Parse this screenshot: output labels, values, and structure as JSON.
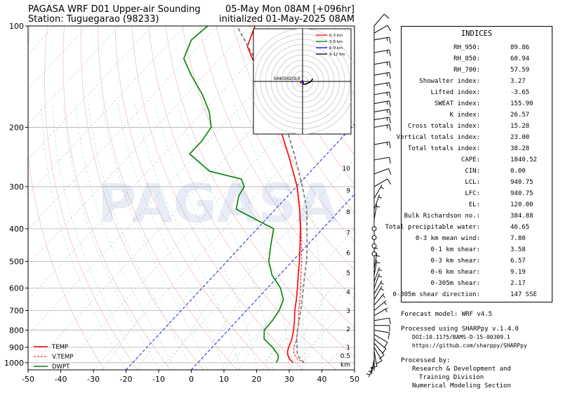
{
  "header": {
    "title_left": "PAGASA WRF D01 Upper-air Sounding",
    "station": "Station: Tuguegarao (98233)",
    "valid": "05-May Mon 08AM [+096hr]",
    "initialized": "initialized 01-May-2025 08AM"
  },
  "watermark": "PAGASA",
  "chart_data": {
    "type": "line",
    "subtype": "skew-T log-P diagram",
    "x_axis": {
      "label": "",
      "range": [
        -50,
        50
      ],
      "ticks": [
        -50,
        -40,
        -30,
        -20,
        -10,
        0,
        10,
        20,
        30,
        40,
        50
      ]
    },
    "y_axis": {
      "label": "",
      "scale": "log",
      "range": [
        1050,
        100
      ],
      "ticks": [
        1000,
        900,
        800,
        700,
        600,
        500,
        400,
        300,
        200,
        100
      ]
    },
    "height_km_labels": [
      {
        "label": "km",
        "p": 1013
      },
      {
        "label": "0.5",
        "p": 955
      },
      {
        "label": "1",
        "p": 900
      },
      {
        "label": "2",
        "p": 795
      },
      {
        "label": "3",
        "p": 702
      },
      {
        "label": "4",
        "p": 616
      },
      {
        "label": "5",
        "p": 541
      },
      {
        "label": "6",
        "p": 472
      },
      {
        "label": "7",
        "p": 411
      },
      {
        "label": "8",
        "p": 357
      },
      {
        "label": "9",
        "p": 308
      },
      {
        "label": "10",
        "p": 265
      }
    ],
    "series": [
      {
        "name": "TEMP",
        "color": "#ff0000",
        "style": "solid",
        "points": [
          [
            1000,
            29.2
          ],
          [
            975,
            27.0
          ],
          [
            950,
            25.4
          ],
          [
            925,
            24.2
          ],
          [
            900,
            23.4
          ],
          [
            850,
            22.0
          ],
          [
            800,
            20.0
          ],
          [
            750,
            17.6
          ],
          [
            700,
            14.8
          ],
          [
            650,
            12.2
          ],
          [
            600,
            9.2
          ],
          [
            550,
            5.8
          ],
          [
            500,
            2.2
          ],
          [
            450,
            -2.0
          ],
          [
            400,
            -6.8
          ],
          [
            350,
            -12.6
          ],
          [
            300,
            -19.8
          ],
          [
            250,
            -29.6
          ],
          [
            200,
            -42.0
          ],
          [
            175,
            -50.0
          ],
          [
            150,
            -58.0
          ],
          [
            125,
            -70.0
          ],
          [
            115,
            -75.0
          ],
          [
            100,
            -78.5
          ]
        ]
      },
      {
        "name": "V.TEMP",
        "color": "#ff0000",
        "style": "dashed",
        "points": [
          [
            1000,
            32.5
          ],
          [
            975,
            29.5
          ],
          [
            950,
            27.5
          ],
          [
            925,
            26.0
          ],
          [
            900,
            25.0
          ],
          [
            850,
            23.4
          ],
          [
            800,
            21.3
          ],
          [
            750,
            18.8
          ],
          [
            700,
            16.0
          ],
          [
            650,
            13.3
          ],
          [
            600,
            10.2
          ],
          [
            550,
            6.6
          ],
          [
            500,
            2.9
          ],
          [
            450,
            -1.6
          ],
          [
            400,
            -6.6
          ],
          [
            350,
            -12.5
          ],
          [
            300,
            -19.7
          ],
          [
            250,
            -29.6
          ]
        ]
      },
      {
        "name": "DWPT",
        "color": "#008000",
        "style": "solid",
        "points": [
          [
            1000,
            24.0
          ],
          [
            975,
            23.5
          ],
          [
            950,
            22.5
          ],
          [
            900,
            18.5
          ],
          [
            850,
            13.5
          ],
          [
            800,
            11.0
          ],
          [
            750,
            10.8
          ],
          [
            700,
            10.0
          ],
          [
            650,
            8.2
          ],
          [
            600,
            4.0
          ],
          [
            550,
            -2.2
          ],
          [
            500,
            -7.2
          ],
          [
            450,
            -11.0
          ],
          [
            400,
            -15.0
          ],
          [
            370,
            -25.0
          ],
          [
            350,
            -32.0
          ],
          [
            320,
            -35.0
          ],
          [
            300,
            -36.0
          ],
          [
            285,
            -39.0
          ],
          [
            270,
            -51.0
          ],
          [
            240,
            -62.0
          ],
          [
            220,
            -62.0
          ],
          [
            200,
            -63.0
          ],
          [
            180,
            -68.0
          ],
          [
            160,
            -75.0
          ],
          [
            140,
            -84.0
          ],
          [
            125,
            -91.0
          ],
          [
            110,
            -94.0
          ],
          [
            100,
            -93.0
          ]
        ]
      },
      {
        "name": "parcel",
        "color": "#808080",
        "style": "dashed",
        "points": [
          [
            1000,
            32.5
          ],
          [
            950,
            28.3
          ],
          [
            900,
            26.0
          ],
          [
            850,
            23.5
          ],
          [
            800,
            21.2
          ],
          [
            750,
            19.0
          ],
          [
            700,
            16.6
          ],
          [
            650,
            14.0
          ],
          [
            600,
            11.0
          ],
          [
            550,
            7.8
          ],
          [
            500,
            4.4
          ],
          [
            450,
            0.2
          ],
          [
            400,
            -4.8
          ],
          [
            350,
            -10.4
          ],
          [
            300,
            -18.2
          ],
          [
            250,
            -27.8
          ],
          [
            200,
            -40.0
          ],
          [
            150,
            -57.0
          ],
          [
            120,
            -72.0
          ],
          [
            100,
            -84.0
          ]
        ]
      }
    ],
    "legend": {
      "position": "bottom-left",
      "entries": [
        "TEMP",
        "V.TEMP",
        "DWPT"
      ]
    },
    "hodograph": {
      "position": "top-right",
      "ring_labels": [
        "50",
        "40",
        "30",
        "20",
        "10"
      ],
      "legend": [
        {
          "name": "0-3 km",
          "color": "#ff0000"
        },
        {
          "name": "3-6 km",
          "color": "#008000"
        },
        {
          "name": "6-9 km",
          "color": "#0000ff"
        },
        {
          "name": "9-12 km",
          "color": "#000000"
        }
      ],
      "segments": [
        {
          "layer": "0-3 km",
          "color": "#ff0000",
          "uv": [
            [
              0,
              0
            ],
            [
              -1.5,
              1.8
            ],
            [
              -2.5,
              1.2
            ],
            [
              -2,
              0.5
            ]
          ]
        },
        {
          "layer": "3-6 km",
          "color": "#008000",
          "uv": [
            [
              -2,
              0.5
            ],
            [
              -1,
              -0.5
            ],
            [
              0,
              -1
            ]
          ]
        },
        {
          "layer": "6-9 km",
          "color": "#0000ff",
          "uv": [
            [
              0,
              -1
            ],
            [
              1,
              1
            ],
            [
              0,
              3
            ]
          ]
        },
        {
          "layer": "9-12 km",
          "color": "#000000",
          "uv": [
            [
              0,
              3
            ],
            [
              3,
              3
            ],
            [
              8,
              1
            ],
            [
              10,
              -1
            ],
            [
              11,
              -3
            ]
          ]
        }
      ]
    },
    "wind_barbs": {
      "position": "right margin",
      "levels_hpa": [
        1000,
        975,
        950,
        925,
        900,
        875,
        850,
        825,
        800,
        775,
        750,
        725,
        700,
        675,
        650,
        625,
        600,
        575,
        550,
        525,
        500,
        475,
        450,
        425,
        400,
        375,
        350,
        325,
        300,
        275,
        250,
        225,
        200,
        190,
        180,
        170,
        160,
        150,
        140,
        130,
        120,
        110,
        105,
        100
      ],
      "speed_kt": [
        5,
        5,
        5,
        10,
        10,
        10,
        10,
        10,
        10,
        10,
        10,
        5,
        5,
        5,
        5,
        5,
        5,
        5,
        5,
        5,
        5,
        0,
        0,
        0,
        0,
        5,
        5,
        5,
        10,
        10,
        10,
        15,
        15,
        15,
        15,
        15,
        15,
        15,
        15,
        15,
        15,
        15,
        10,
        10
      ],
      "dir_deg": [
        200,
        190,
        180,
        170,
        150,
        140,
        130,
        120,
        100,
        90,
        80,
        60,
        50,
        40,
        30,
        30,
        20,
        20,
        10,
        10,
        0,
        0,
        0,
        0,
        0,
        10,
        20,
        30,
        60,
        70,
        80,
        80,
        80,
        80,
        80,
        80,
        80,
        80,
        80,
        80,
        80,
        80,
        60,
        40
      ]
    }
  },
  "indices": {
    "title": "INDICES",
    "rows": [
      {
        "label": "RH_950:",
        "value": "89.86"
      },
      {
        "label": "RH_850:",
        "value": "60.94"
      },
      {
        "label": "RH_700:",
        "value": "57.59"
      },
      {
        "label": "Showalter index:",
        "value": "3.27"
      },
      {
        "label": "Lifted index:",
        "value": "-3.65"
      },
      {
        "label": "SWEAT index:",
        "value": "155.90"
      },
      {
        "label": "K index:",
        "value": "26.57"
      },
      {
        "label": "Cross totals index:",
        "value": "15.28"
      },
      {
        "label": "Vertical totals index:",
        "value": "23.00"
      },
      {
        "label": "Total totals index:",
        "value": "38.28"
      },
      {
        "label": "CAPE:",
        "value": "1840.52"
      },
      {
        "label": "CIN:",
        "value": "0.00"
      },
      {
        "label": "LCL:",
        "value": "940.75"
      },
      {
        "label": "LFC:",
        "value": "940.75"
      },
      {
        "label": "EL:",
        "value": "120.00"
      },
      {
        "label": "Bulk Richardson no.:",
        "value": "384.88"
      },
      {
        "label": "Total precipitable water:",
        "value": "46.65"
      },
      {
        "label": "0-3 km mean wind:",
        "value": "7.80"
      },
      {
        "label": "0-1 km shear:",
        "value": "3.58"
      },
      {
        "label": "0-3 km shear:",
        "value": "6.57"
      },
      {
        "label": "0-6 km shear:",
        "value": "9.19"
      },
      {
        "label": "0-305m shear:",
        "value": "2.17"
      },
      {
        "label": "0-305m shear direction:",
        "value": "147 SSE"
      }
    ]
  },
  "footer": {
    "model": "Forecast model: WRF v4.5",
    "processed": "Processed using SHARPpy v.1.4.0",
    "doi": "DOI:10.1175/BAMS-D-15-00309.1",
    "url": "https://github.com/sharppy/SHARPpy",
    "by": "Processed by:",
    "org1": "Research & Development and",
    "org2": "Training Division",
    "org3": "Numerical Modeling Section"
  }
}
